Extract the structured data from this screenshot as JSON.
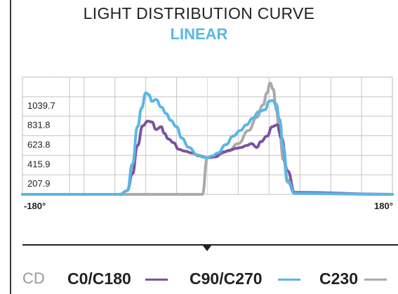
{
  "header": {
    "title": "LIGHT DISTRIBUTION CURVE",
    "subtitle": "LINEAR"
  },
  "legend": {
    "unit": "CD",
    "items": [
      {
        "label": "C0/C180",
        "color": "#7b529f"
      },
      {
        "label": "C90/C270",
        "color": "#5bb6e4"
      },
      {
        "label": "C230",
        "color": "#aaaaaa"
      }
    ]
  },
  "chart_data": {
    "type": "line",
    "title": "LIGHT DISTRIBUTION CURVE",
    "subtitle": "LINEAR",
    "xlabel": "",
    "ylabel": "",
    "xlim": [
      -180,
      180
    ],
    "ylim": [
      0,
      1247.6
    ],
    "y_ticks": [
      207.9,
      415.9,
      623.8,
      831.8,
      1039.7
    ],
    "x_tick_labels": [
      "-180°",
      "180°"
    ],
    "grid": true,
    "legend_position": "bottom",
    "series": [
      {
        "name": "C0/C180",
        "color": "#7b529f",
        "x": [
          -180,
          -85,
          -78,
          -73,
          -68,
          -63,
          -58,
          -54,
          -50,
          -45,
          -42,
          -38,
          -33,
          -28,
          -22,
          -15,
          -8,
          0,
          8,
          15,
          22,
          28,
          33,
          38,
          43,
          48,
          52,
          58,
          63,
          68,
          72,
          78,
          85,
          180
        ],
        "y": [
          0,
          0,
          40,
          220,
          520,
          730,
          780,
          770,
          690,
          720,
          650,
          590,
          550,
          480,
          460,
          440,
          410,
          390,
          400,
          450,
          470,
          490,
          500,
          520,
          540,
          500,
          560,
          620,
          720,
          740,
          600,
          250,
          20,
          0
        ]
      },
      {
        "name": "C90/C270",
        "color": "#5bb6e4",
        "x": [
          -180,
          -85,
          -78,
          -73,
          -68,
          -64,
          -60,
          -57,
          -54,
          -50,
          -45,
          -40,
          -36,
          -30,
          -25,
          -18,
          -10,
          -4,
          0,
          5,
          10,
          18,
          25,
          32,
          38,
          44,
          50,
          56,
          60,
          63,
          67,
          70,
          74,
          78,
          85,
          180
        ],
        "y": [
          0,
          0,
          40,
          320,
          720,
          920,
          1080,
          1060,
          990,
          1010,
          930,
          860,
          790,
          720,
          600,
          500,
          420,
          395,
          390,
          410,
          440,
          530,
          620,
          680,
          740,
          810,
          880,
          900,
          990,
          1000,
          960,
          800,
          500,
          150,
          10,
          0
        ]
      },
      {
        "name": "C230",
        "color": "#aaaaaa",
        "x": [
          -180,
          -60,
          -30,
          -15,
          -5,
          0,
          5,
          12,
          20,
          30,
          40,
          48,
          54,
          58,
          61,
          64,
          67,
          70,
          74,
          78,
          85,
          180
        ],
        "y": [
          0,
          0,
          0,
          0,
          0,
          390,
          400,
          430,
          460,
          540,
          680,
          820,
          950,
          1080,
          1185,
          1120,
          900,
          660,
          370,
          130,
          10,
          0
        ]
      }
    ]
  }
}
